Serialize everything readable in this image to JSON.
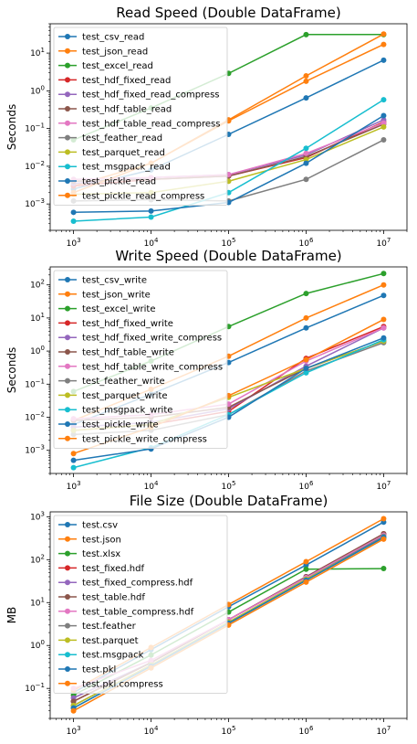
{
  "chart_data": [
    {
      "type": "line",
      "title": "Read Speed (Double DataFrame)",
      "xlabel": "",
      "ylabel": "Seconds",
      "xscale": "log",
      "yscale": "log",
      "xlim": [
        500,
        20000000
      ],
      "ylim": [
        0.0002,
        60
      ],
      "xticks": [
        {
          "v": 1000,
          "m": "3"
        },
        {
          "v": 10000,
          "m": "4"
        },
        {
          "v": 100000,
          "m": "5"
        },
        {
          "v": 1000000,
          "m": "6"
        },
        {
          "v": 10000000,
          "m": "7"
        }
      ],
      "yticks": [
        {
          "v": 0.001,
          "m": "−3"
        },
        {
          "v": 0.01,
          "m": "−2"
        },
        {
          "v": 0.1,
          "m": "−1"
        },
        {
          "v": 1,
          "m": "0"
        },
        {
          "v": 10,
          "m": "1"
        }
      ],
      "grid": false,
      "legend": "upper-left",
      "x": [
        1000,
        10000,
        100000,
        1000000,
        10000000
      ],
      "series": [
        {
          "name": "test_csv_read",
          "color": "#1f77b4",
          "values": [
            0.0025,
            0.008,
            0.07,
            0.65,
            6.5
          ]
        },
        {
          "name": "test_json_read",
          "color": "#ff7f0e",
          "values": [
            0.003,
            0.012,
            0.16,
            1.8,
            17
          ]
        },
        {
          "name": "test_excel_read",
          "color": "#2ca02c",
          "values": [
            0.05,
            0.35,
            2.9,
            31,
            31
          ]
        },
        {
          "name": "test_hdf_fixed_read",
          "color": "#d62728",
          "values": [
            0.003,
            0.0045,
            0.0055,
            0.017,
            0.15
          ]
        },
        {
          "name": "test_hdf_fixed_read_compress",
          "color": "#9467bd",
          "values": [
            0.0035,
            0.005,
            0.006,
            0.02,
            0.17
          ]
        },
        {
          "name": "test_hdf_table_read",
          "color": "#8c564b",
          "values": [
            0.004,
            0.0045,
            0.0055,
            0.018,
            0.13
          ]
        },
        {
          "name": "test_hdf_table_read_compress",
          "color": "#e377c2",
          "values": [
            0.0045,
            0.005,
            0.006,
            0.022,
            0.14
          ]
        },
        {
          "name": "test_feather_read",
          "color": "#7f7f7f",
          "values": [
            0.0012,
            0.0013,
            0.0012,
            0.0045,
            0.05
          ]
        },
        {
          "name": "test_parquet_read",
          "color": "#bcbd22",
          "values": [
            0.0018,
            0.002,
            0.004,
            0.015,
            0.11
          ]
        },
        {
          "name": "test_msgpack_read",
          "color": "#17becf",
          "values": [
            0.00035,
            0.00045,
            0.002,
            0.03,
            0.58
          ]
        },
        {
          "name": "test_pickle_read",
          "color": "#1f77b4",
          "values": [
            0.0006,
            0.00065,
            0.0011,
            0.012,
            0.22
          ]
        },
        {
          "name": "test_pickle_read_compress",
          "color": "#ff7f0e",
          "values": [
            0.002,
            0.012,
            0.17,
            2.5,
            32
          ]
        }
      ]
    },
    {
      "type": "line",
      "title": "Write Speed (Double DataFrame)",
      "xlabel": "",
      "ylabel": "Seconds",
      "xscale": "log",
      "yscale": "log",
      "xlim": [
        500,
        20000000
      ],
      "ylim": [
        0.0002,
        350
      ],
      "xticks": [
        {
          "v": 1000,
          "m": "3"
        },
        {
          "v": 10000,
          "m": "4"
        },
        {
          "v": 100000,
          "m": "5"
        },
        {
          "v": 1000000,
          "m": "6"
        },
        {
          "v": 10000000,
          "m": "7"
        }
      ],
      "yticks": [
        {
          "v": 0.001,
          "m": "−3"
        },
        {
          "v": 0.01,
          "m": "−2"
        },
        {
          "v": 0.1,
          "m": "−1"
        },
        {
          "v": 1,
          "m": "0"
        },
        {
          "v": 10,
          "m": "1"
        },
        {
          "v": 100,
          "m": "2"
        }
      ],
      "grid": false,
      "legend": "upper-left",
      "x": [
        1000,
        10000,
        100000,
        1000000,
        10000000
      ],
      "series": [
        {
          "name": "test_csv_write",
          "color": "#1f77b4",
          "values": [
            0.006,
            0.05,
            0.45,
            5,
            48
          ]
        },
        {
          "name": "test_json_write",
          "color": "#ff7f0e",
          "values": [
            0.008,
            0.07,
            0.7,
            10,
            100
          ]
        },
        {
          "name": "test_excel_write",
          "color": "#2ca02c",
          "values": [
            0.06,
            0.5,
            5.5,
            55,
            220
          ]
        },
        {
          "name": "test_hdf_fixed_write",
          "color": "#d62728",
          "values": [
            0.004,
            0.006,
            0.015,
            0.6,
            5.5
          ]
        },
        {
          "name": "test_hdf_fixed_write_compress",
          "color": "#9467bd",
          "values": [
            0.005,
            0.007,
            0.018,
            0.35,
            5
          ]
        },
        {
          "name": "test_hdf_table_write",
          "color": "#8c564b",
          "values": [
            0.008,
            0.01,
            0.02,
            0.3,
            2
          ]
        },
        {
          "name": "test_hdf_table_write_compress",
          "color": "#e377c2",
          "values": [
            0.009,
            0.012,
            0.025,
            0.5,
            5
          ]
        },
        {
          "name": "test_feather_write",
          "color": "#7f7f7f",
          "values": [
            0.003,
            0.004,
            0.012,
            0.25,
            1.8
          ]
        },
        {
          "name": "test_parquet_write",
          "color": "#bcbd22",
          "values": [
            0.004,
            0.006,
            0.04,
            0.3,
            2
          ]
        },
        {
          "name": "test_msgpack_write",
          "color": "#17becf",
          "values": [
            0.0003,
            0.0012,
            0.012,
            0.22,
            2.2
          ]
        },
        {
          "name": "test_pickle_write",
          "color": "#1f77b4",
          "values": [
            0.0005,
            0.0011,
            0.01,
            0.3,
            2.5
          ]
        },
        {
          "name": "test_pickle_write_compress",
          "color": "#ff7f0e",
          "values": [
            0.0008,
            0.005,
            0.045,
            0.55,
            9
          ]
        }
      ]
    },
    {
      "type": "line",
      "title": "File Size (Double DataFrame)",
      "xlabel": "",
      "ylabel": "MB",
      "xscale": "log",
      "yscale": "log",
      "xlim": [
        500,
        20000000
      ],
      "ylim": [
        0.02,
        1300
      ],
      "xticks": [
        {
          "v": 1000,
          "m": "3"
        },
        {
          "v": 10000,
          "m": "4"
        },
        {
          "v": 100000,
          "m": "5"
        },
        {
          "v": 1000000,
          "m": "6"
        },
        {
          "v": 10000000,
          "m": "7"
        }
      ],
      "yticks": [
        {
          "v": 0.1,
          "m": "−1"
        },
        {
          "v": 1,
          "m": "0"
        },
        {
          "v": 10,
          "m": "1"
        },
        {
          "v": 100,
          "m": "2"
        },
        {
          "v": 1000,
          "m": "3"
        }
      ],
      "grid": false,
      "legend": "upper-left",
      "x": [
        1000,
        10000,
        100000,
        1000000,
        10000000
      ],
      "series": [
        {
          "name": "test.csv",
          "color": "#1f77b4",
          "values": [
            0.08,
            0.8,
            8,
            75,
            750
          ]
        },
        {
          "name": "test.json",
          "color": "#ff7f0e",
          "values": [
            0.09,
            0.9,
            9,
            90,
            900
          ]
        },
        {
          "name": "test.xlsx",
          "color": "#2ca02c",
          "values": [
            0.07,
            0.6,
            6,
            60,
            62
          ]
        },
        {
          "name": "test_fixed.hdf",
          "color": "#d62728",
          "values": [
            0.05,
            0.4,
            4,
            40,
            400
          ]
        },
        {
          "name": "test_fixed_compress.hdf",
          "color": "#9467bd",
          "values": [
            0.06,
            0.4,
            4,
            40,
            380
          ]
        },
        {
          "name": "test_table.hdf",
          "color": "#8c564b",
          "values": [
            0.05,
            0.4,
            4,
            40,
            400
          ]
        },
        {
          "name": "test_table_compress.hdf",
          "color": "#e377c2",
          "values": [
            0.1,
            0.45,
            4,
            38,
            370
          ]
        },
        {
          "name": "test.feather",
          "color": "#7f7f7f",
          "values": [
            0.04,
            0.35,
            3.5,
            35,
            350
          ]
        },
        {
          "name": "test.parquet",
          "color": "#bcbd22",
          "values": [
            0.04,
            0.35,
            3.5,
            35,
            320
          ]
        },
        {
          "name": "test.msgpack",
          "color": "#17becf",
          "values": [
            0.035,
            0.33,
            3.3,
            33,
            330
          ]
        },
        {
          "name": "test.pkl",
          "color": "#1f77b4",
          "values": [
            0.035,
            0.33,
            3.3,
            33,
            330
          ]
        },
        {
          "name": "test.pkl.compress",
          "color": "#ff7f0e",
          "values": [
            0.03,
            0.3,
            3,
            30,
            300
          ]
        }
      ]
    }
  ]
}
